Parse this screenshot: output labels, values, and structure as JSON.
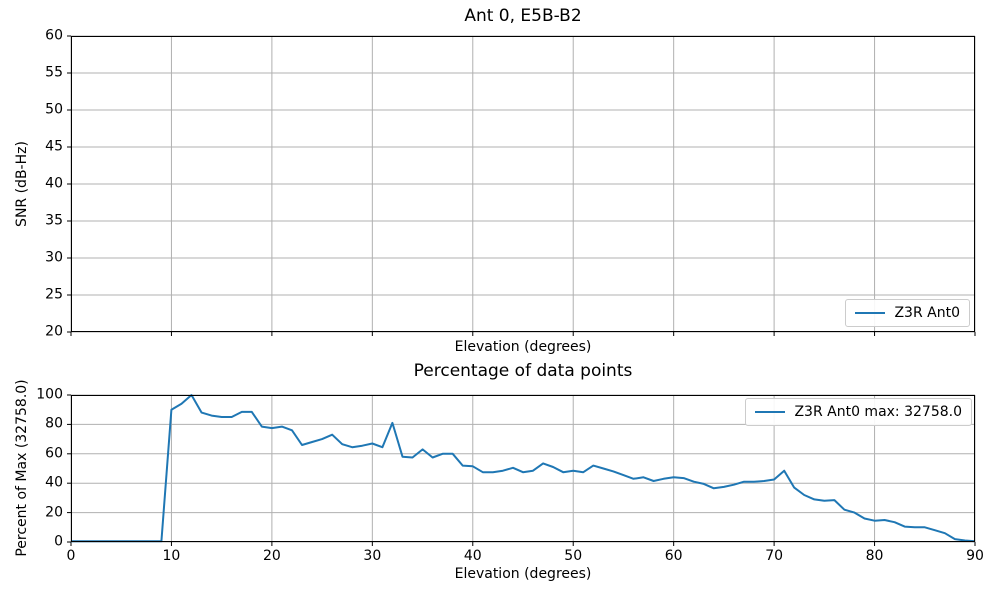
{
  "colors": {
    "line": "#1f77b4",
    "grid": "#b0b0b0",
    "axis": "#000000",
    "text": "#000000",
    "legend_border": "#cccccc",
    "background": "#ffffff"
  },
  "chart_data": [
    {
      "id": "snr-vs-elevation",
      "type": "line",
      "title": "Ant 0, E5B-B2",
      "xlabel": "Elevation (degrees)",
      "ylabel": "SNR (dB-Hz)",
      "xlim": [
        0,
        90
      ],
      "ylim": [
        20,
        60
      ],
      "xticks": [
        0,
        10,
        20,
        30,
        40,
        50,
        60,
        70,
        80,
        90
      ],
      "xtick_labels_visible": false,
      "yticks": [
        20,
        25,
        30,
        35,
        40,
        45,
        50,
        55,
        60
      ],
      "grid": true,
      "legend_label": "Z3R Ant0",
      "legend_position": "lower right",
      "series": []
    },
    {
      "id": "percentage-of-data-points",
      "type": "line",
      "title": "Percentage of data points",
      "xlabel": "Elevation (degrees)",
      "ylabel": "Percent of Max (32758.0)",
      "xlim": [
        0,
        90
      ],
      "ylim": [
        0,
        100
      ],
      "xticks": [
        0,
        10,
        20,
        30,
        40,
        50,
        60,
        70,
        80,
        90
      ],
      "xtick_labels_visible": true,
      "yticks": [
        0,
        20,
        40,
        60,
        80,
        100
      ],
      "grid": true,
      "legend_label": "Z3R Ant0 max: 32758.0",
      "legend_position": "upper right",
      "max_value": 32758.0,
      "series": [
        {
          "name": "Z3R Ant0",
          "color": "#1f77b4",
          "x": [
            0,
            1,
            2,
            3,
            4,
            5,
            6,
            7,
            8,
            9,
            10,
            11,
            12,
            13,
            14,
            15,
            16,
            17,
            18,
            19,
            20,
            21,
            22,
            23,
            24,
            25,
            26,
            27,
            28,
            29,
            30,
            31,
            32,
            33,
            34,
            35,
            36,
            37,
            38,
            39,
            40,
            41,
            42,
            43,
            44,
            45,
            46,
            47,
            48,
            49,
            50,
            51,
            52,
            53,
            54,
            55,
            56,
            57,
            58,
            59,
            60,
            61,
            62,
            63,
            64,
            65,
            66,
            67,
            68,
            69,
            70,
            71,
            72,
            73,
            74,
            75,
            76,
            77,
            78,
            79,
            80,
            81,
            82,
            83,
            84,
            85,
            86,
            87,
            88,
            89,
            90
          ],
          "y": [
            0.5,
            0.5,
            0.5,
            0.5,
            0.5,
            0.5,
            0.5,
            0.5,
            0.5,
            0.5,
            90,
            94,
            100,
            88,
            86,
            85,
            85,
            88.5,
            88.5,
            78.5,
            77.5,
            78.5,
            76,
            66,
            68,
            70,
            73,
            66.5,
            64.5,
            65.5,
            67,
            64.5,
            81,
            58,
            57.5,
            63,
            57.5,
            60,
            60,
            52,
            51.5,
            47.5,
            47.5,
            48.5,
            50.5,
            47.5,
            48.5,
            53.5,
            51,
            47.5,
            48.5,
            47.5,
            52,
            50,
            48,
            45.5,
            43,
            44,
            41.5,
            43,
            44,
            43.5,
            41,
            39.5,
            36.5,
            37.5,
            39,
            41,
            41,
            41.5,
            42.5,
            48.5,
            37,
            32,
            29,
            28,
            28.5,
            22,
            20,
            16,
            14.5,
            15,
            13.5,
            10.5,
            10,
            10,
            8,
            6,
            2,
            1,
            0.5
          ]
        }
      ]
    }
  ]
}
